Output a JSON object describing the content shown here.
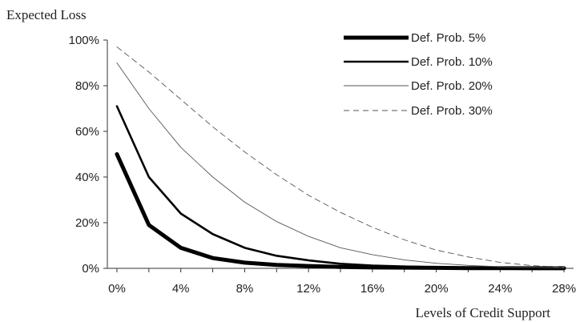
{
  "chart_data": {
    "type": "line",
    "ylabel": "Expected Loss",
    "xlabel": "Levels of Credit Support",
    "x": [
      0,
      2,
      4,
      6,
      8,
      10,
      12,
      14,
      16,
      18,
      20,
      22,
      24,
      26,
      28
    ],
    "xlim": [
      -0.6,
      28.6
    ],
    "ylim": [
      0,
      100
    ],
    "x_ticks": [
      0,
      4,
      8,
      12,
      16,
      20,
      24,
      28
    ],
    "x_tick_labels": [
      "0%",
      "4%",
      "8%",
      "12%",
      "16%",
      "20%",
      "24%",
      "28%"
    ],
    "y_ticks": [
      0,
      20,
      40,
      60,
      80,
      100
    ],
    "y_tick_labels": [
      "0%",
      "20%",
      "40%",
      "60%",
      "80%",
      "100%"
    ],
    "grid": false,
    "legend_position": "top-right",
    "series": [
      {
        "name": "Def. Prob. 5%",
        "color": "#000000",
        "style": "solid-heavy",
        "values": [
          50,
          19,
          9,
          4.5,
          2.5,
          1.5,
          1,
          0.6,
          0.4,
          0.3,
          0.2,
          0.1,
          0.1,
          0.05,
          0.05
        ]
      },
      {
        "name": "Def. Prob. 10%",
        "color": "#000000",
        "style": "solid-medium",
        "values": [
          71,
          40,
          24,
          15,
          9,
          5.5,
          3.5,
          2,
          1.2,
          0.8,
          0.5,
          0.3,
          0.2,
          0.1,
          0.05
        ]
      },
      {
        "name": "Def. Prob. 20%",
        "color": "#555555",
        "style": "solid-thin",
        "values": [
          90,
          70,
          53,
          40,
          29,
          20.5,
          14,
          9,
          6,
          3.7,
          2.2,
          1.3,
          0.7,
          0.4,
          0.2
        ]
      },
      {
        "name": "Def. Prob. 30%",
        "color": "#555555",
        "style": "dashed",
        "values": [
          97,
          86,
          74,
          62,
          51,
          41,
          32,
          24.5,
          18,
          12.5,
          8,
          5,
          2.6,
          1.2,
          0.5
        ]
      }
    ]
  }
}
